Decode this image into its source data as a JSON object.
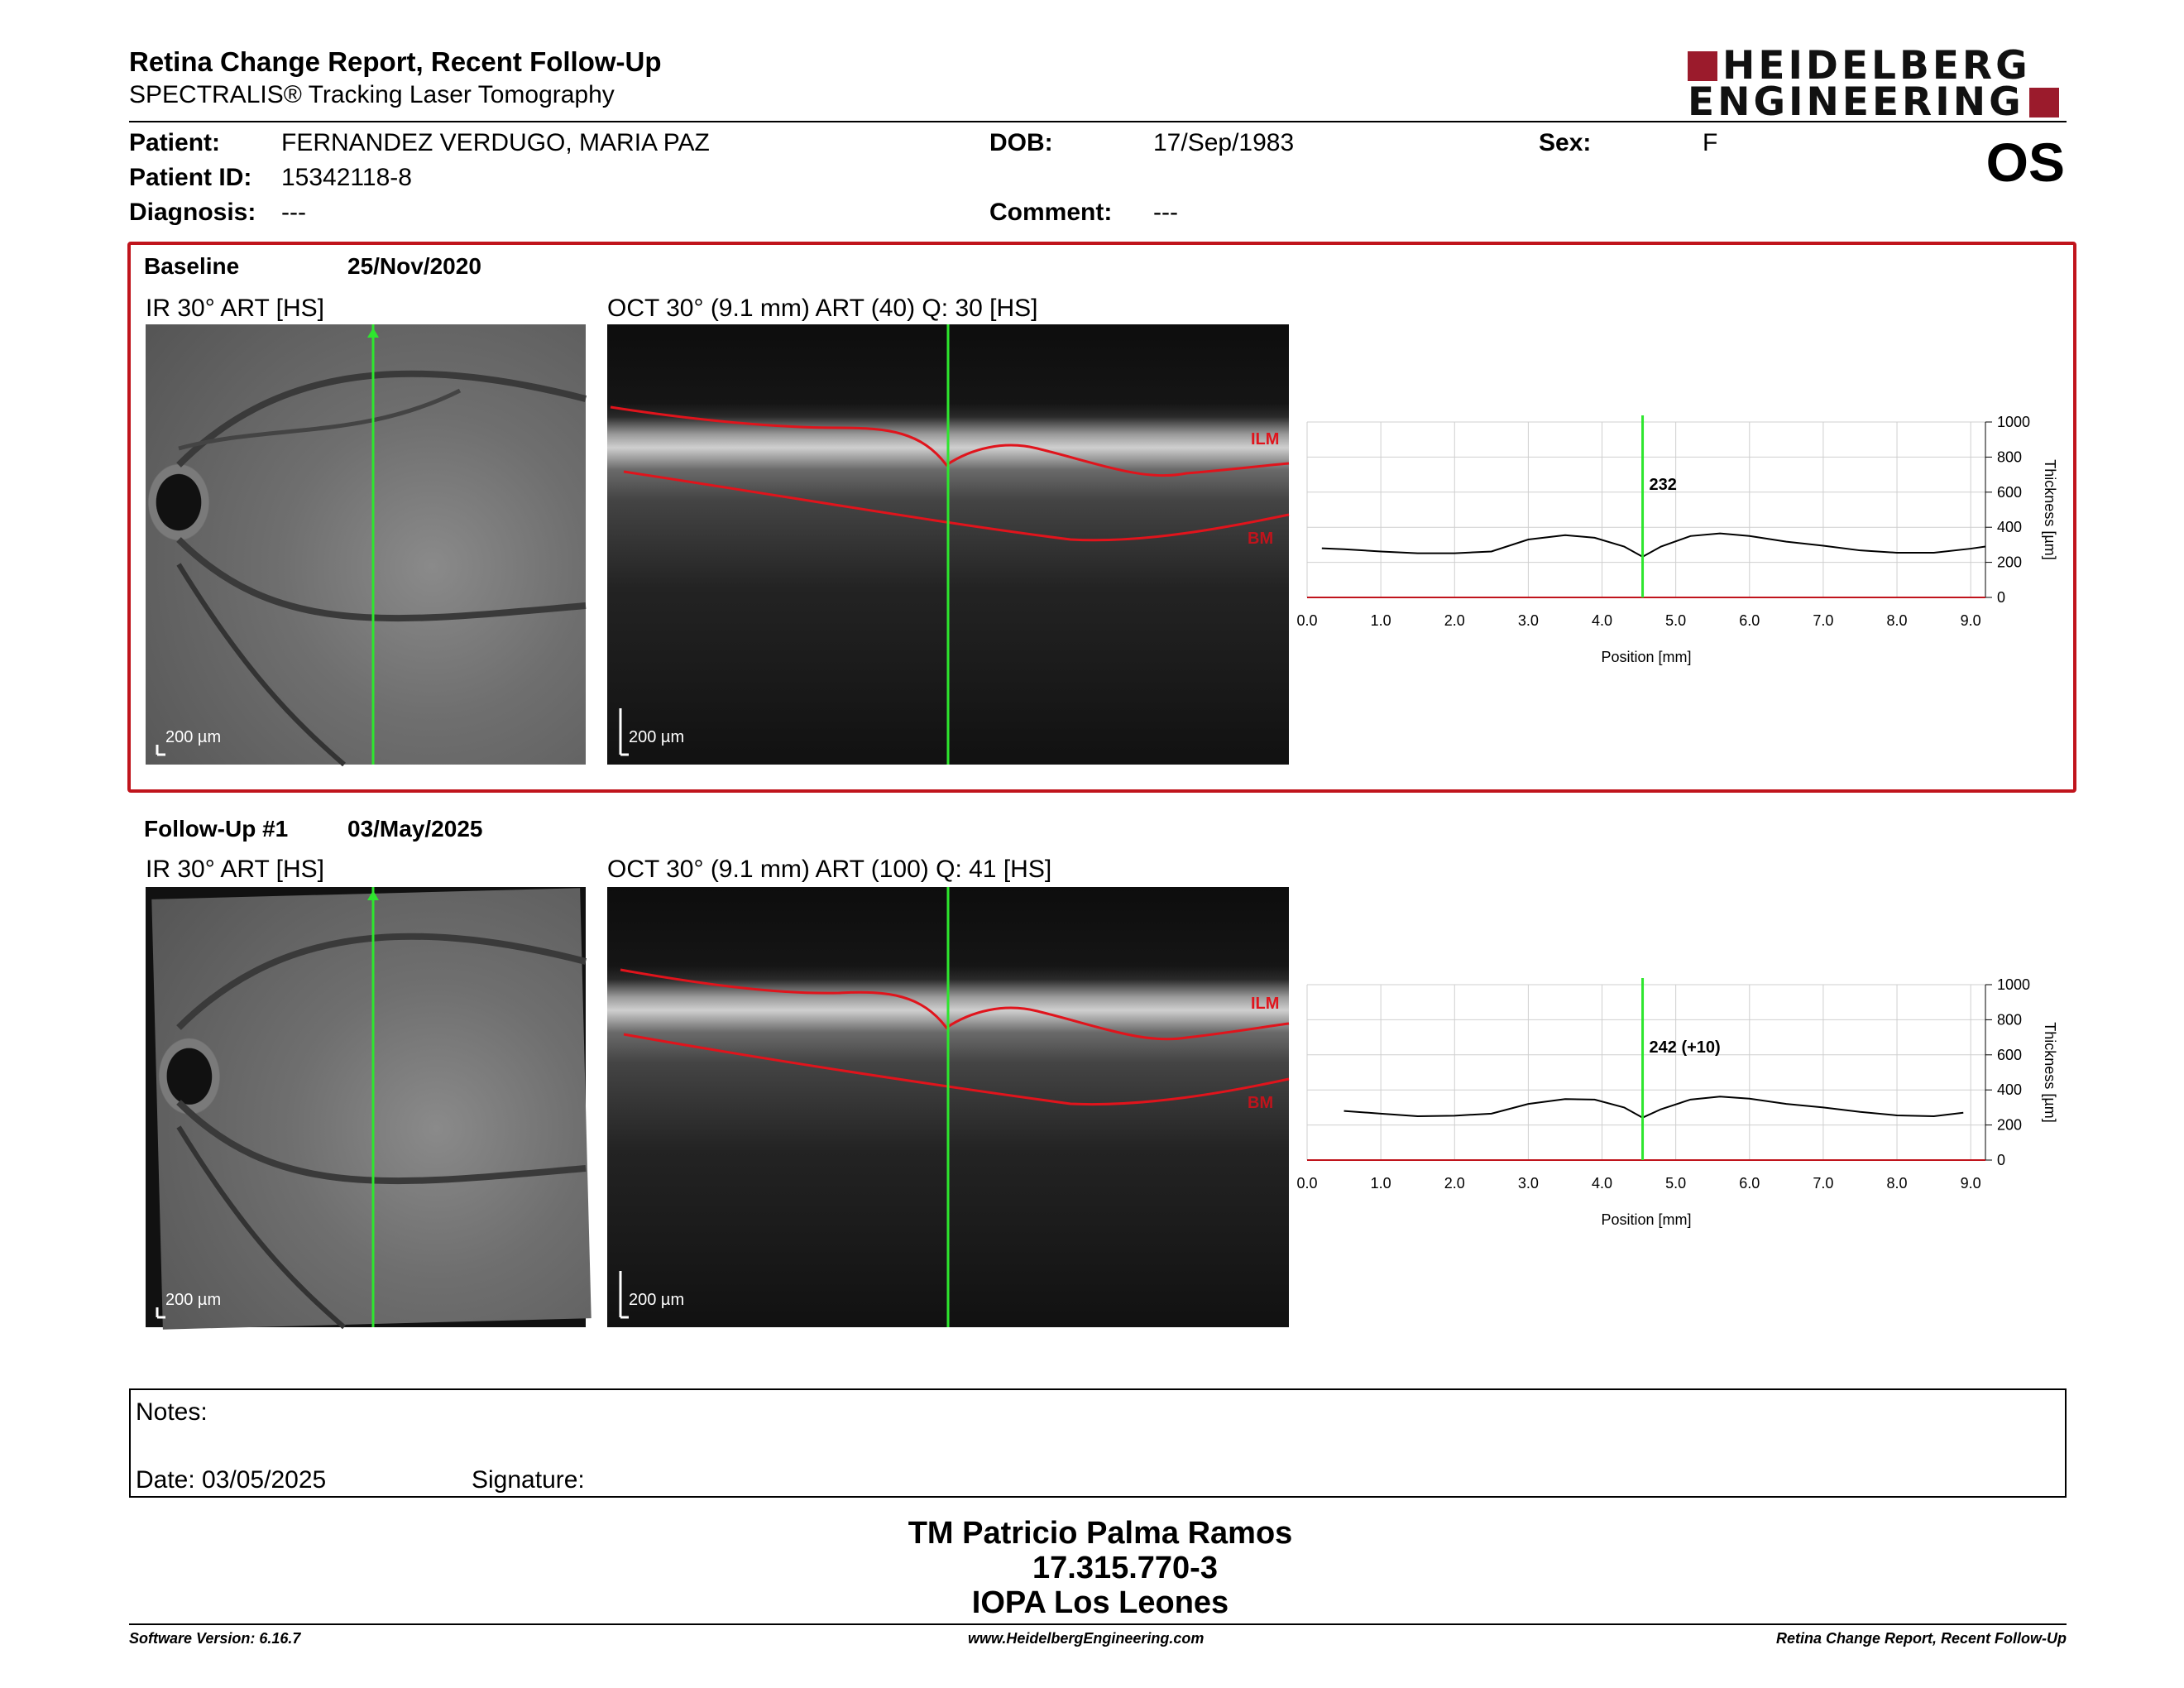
{
  "header": {
    "title": "Retina Change Report, Recent Follow-Up",
    "subtitle": "SPECTRALIS® Tracking Laser Tomography",
    "logo_line1": "HEIDELBERG",
    "logo_line2": "ENGINEERING",
    "eye": "OS"
  },
  "patient": {
    "patient_label": "Patient:",
    "patient_value": "FERNANDEZ VERDUGO, MARIA PAZ",
    "id_label": "Patient ID:",
    "id_value": "15342118-8",
    "diagnosis_label": "Diagnosis:",
    "diagnosis_value": "---",
    "dob_label": "DOB:",
    "dob_value": "17/Sep/1983",
    "comment_label": "Comment:",
    "comment_value": "---",
    "sex_label": "Sex:",
    "sex_value": "F"
  },
  "exams": [
    {
      "label": "Baseline",
      "date": "25/Nov/2020",
      "ir_title": "IR 30° ART [HS]",
      "oct_title": "OCT 30° (9.1 mm) ART (40) Q: 30 [HS]",
      "scale": "200 µm",
      "ilm": "ILM",
      "bm": "BM",
      "marker_value": "232"
    },
    {
      "label": "Follow-Up #1",
      "date": "03/May/2025",
      "ir_title": "IR 30° ART [HS]",
      "oct_title": "OCT 30° (9.1 mm) ART (100) Q: 41 [HS]",
      "scale": "200 µm",
      "ilm": "ILM",
      "bm": "BM",
      "marker_value": "242 (+10)"
    }
  ],
  "chart_data": [
    {
      "type": "line",
      "x": [
        0.2,
        0.5,
        1.0,
        1.5,
        2.0,
        2.5,
        3.0,
        3.5,
        3.9,
        4.3,
        4.55,
        4.8,
        5.2,
        5.6,
        6.0,
        6.5,
        7.0,
        7.5,
        8.0,
        8.5,
        9.0,
        9.2
      ],
      "y": [
        280,
        275,
        262,
        252,
        252,
        262,
        330,
        355,
        340,
        290,
        232,
        290,
        350,
        365,
        350,
        318,
        295,
        268,
        255,
        255,
        278,
        290
      ],
      "xlabel": "Position [mm]",
      "ylabel": "Thickness [µm]",
      "xlim": [
        0.0,
        9.2
      ],
      "ylim": [
        0,
        1000
      ],
      "xticks": [
        "0.0",
        "1.0",
        "2.0",
        "3.0",
        "4.0",
        "5.0",
        "6.0",
        "7.0",
        "8.0",
        "9.0"
      ],
      "yticks": [
        "0",
        "200",
        "400",
        "600",
        "800",
        "1000"
      ],
      "marker_x": 4.55,
      "grid": true,
      "colors": {
        "line": "#000000",
        "marker": "#2ee62e",
        "axis_bottom": "#c0141c"
      }
    },
    {
      "type": "line",
      "x": [
        0.5,
        1.0,
        1.5,
        2.0,
        2.5,
        3.0,
        3.5,
        3.9,
        4.3,
        4.55,
        4.8,
        5.2,
        5.6,
        6.0,
        6.5,
        7.0,
        7.5,
        8.0,
        8.5,
        8.9
      ],
      "y": [
        280,
        265,
        250,
        253,
        265,
        320,
        348,
        345,
        300,
        242,
        290,
        345,
        362,
        350,
        320,
        300,
        275,
        255,
        250,
        270
      ],
      "xlabel": "Position [mm]",
      "ylabel": "Thickness [µm]",
      "xlim": [
        0.0,
        9.2
      ],
      "ylim": [
        0,
        1000
      ],
      "xticks": [
        "0.0",
        "1.0",
        "2.0",
        "3.0",
        "4.0",
        "5.0",
        "6.0",
        "7.0",
        "8.0",
        "9.0"
      ],
      "yticks": [
        "0",
        "200",
        "400",
        "600",
        "800",
        "1000"
      ],
      "marker_x": 4.55,
      "grid": true,
      "colors": {
        "line": "#000000",
        "marker": "#2ee62e",
        "axis_bottom": "#c0141c"
      }
    }
  ],
  "notes": {
    "notes_label": "Notes:",
    "date_label": "Date: 03/05/2025",
    "signature_label": "Signature:"
  },
  "signature_block": {
    "line1": "TM Patricio Palma Ramos",
    "line2": "17.315.770-3",
    "line3": "IOPA Los Leones"
  },
  "footer": {
    "software": "Software Version: 6.16.7",
    "website": "www.HeidelbergEngineering.com",
    "report": "Retina Change Report, Recent Follow-Up"
  }
}
